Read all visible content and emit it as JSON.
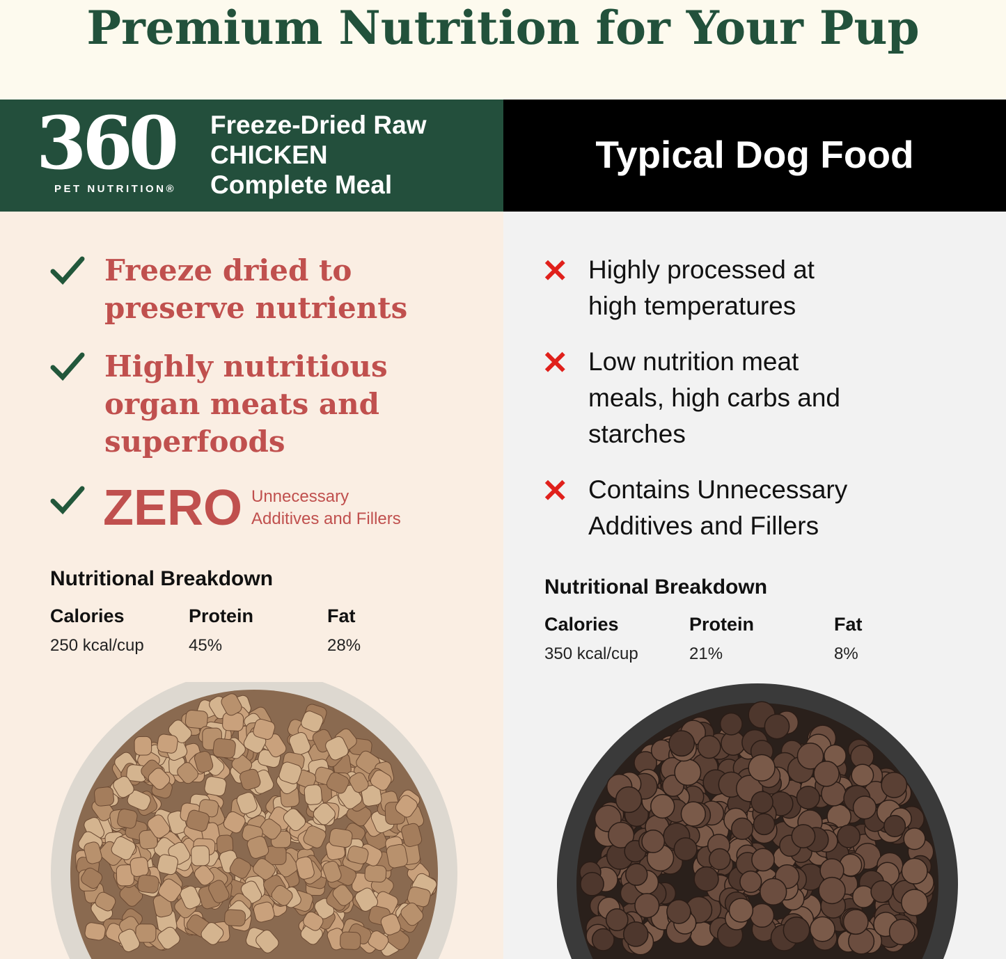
{
  "title": "Premium Nutrition for Your Pup",
  "brand": {
    "logo_number": "360",
    "logo_sub": "PET NUTRITION®",
    "product_lines": [
      "Freeze-Dried Raw",
      "CHICKEN",
      "Complete Meal"
    ]
  },
  "competitor": {
    "title": "Typical Dog Food"
  },
  "left": {
    "benefits": [
      {
        "lines": [
          "Freeze dried to",
          "preserve nutrients"
        ]
      },
      {
        "lines": [
          "Highly nutritious",
          "organ meats and",
          "superfoods"
        ]
      }
    ],
    "zero": {
      "big": "ZERO",
      "lines": [
        "Unnecessary",
        "Additives and Fillers"
      ]
    },
    "nutrition": {
      "heading": "Nutritional Breakdown",
      "labels": [
        "Calories",
        "Protein",
        "Fat"
      ],
      "values": [
        "250 kcal/cup",
        "45%",
        "28%"
      ]
    }
  },
  "right": {
    "drawbacks": [
      {
        "lines": [
          "Highly processed at",
          "high temperatures"
        ]
      },
      {
        "lines": [
          "Low nutrition meat",
          "meals, high carbs and",
          "starches"
        ]
      },
      {
        "lines": [
          "Contains Unnecessary",
          "Additives and Fillers"
        ]
      }
    ],
    "nutrition": {
      "heading": "Nutritional Breakdown",
      "labels": [
        "Calories",
        "Protein",
        "Fat"
      ],
      "values": [
        "350 kcal/cup",
        "21%",
        "8%"
      ]
    }
  },
  "icons": {
    "benefit": "check-icon",
    "drawback": "x-icon"
  },
  "colors": {
    "green": "#234f3c",
    "red_text": "#c0504e",
    "x_red": "#e0201b",
    "left_bg": "#faeee3",
    "right_bg": "#f2f2f2"
  }
}
